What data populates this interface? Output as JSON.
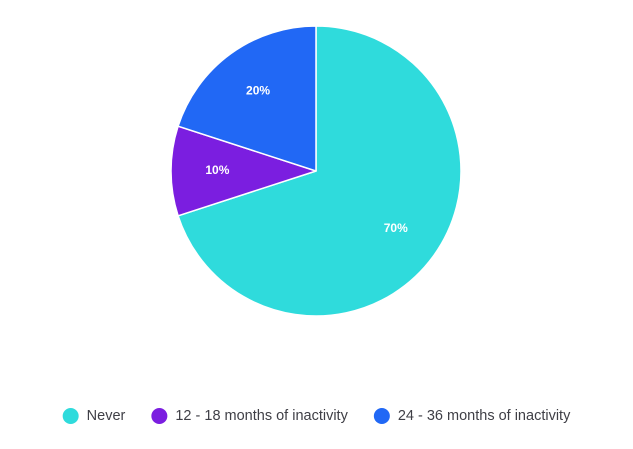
{
  "chart_data": {
    "type": "pie",
    "title": "",
    "slices": [
      {
        "label": "Never",
        "value": 70,
        "display": "70%",
        "color": "#2fdbdc"
      },
      {
        "label": "12 - 18 months of inactivity",
        "value": 10,
        "display": "10%",
        "color": "#7b1ee0"
      },
      {
        "label": "24 - 36 months of inactivity",
        "value": 20,
        "display": "20%",
        "color": "#2168f5"
      }
    ],
    "legend_position": "bottom",
    "start": "top, clockwise"
  }
}
